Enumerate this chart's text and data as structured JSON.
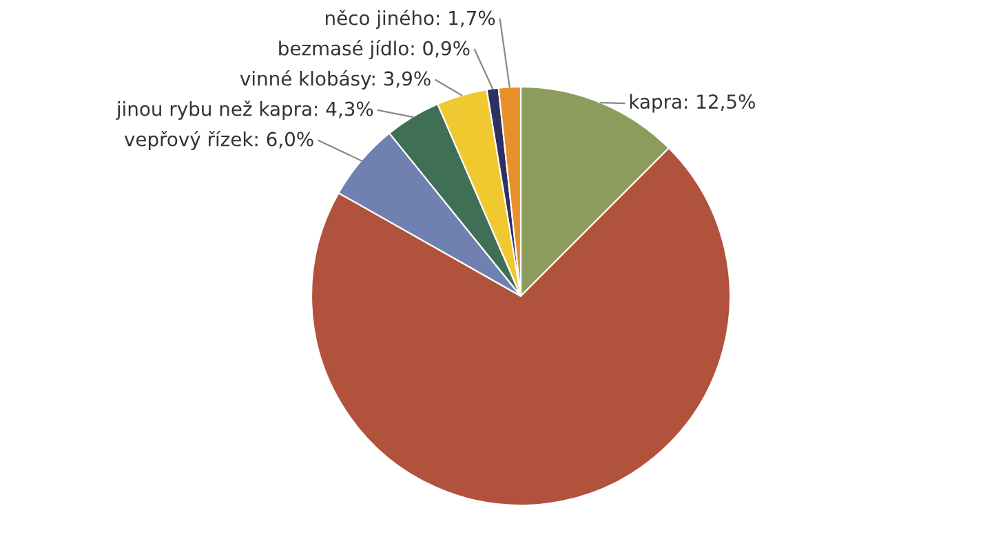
{
  "chart_data": {
    "type": "pie",
    "categories": [
      "kapra",
      null,
      "vepřový řízek",
      "jinou rybu než kapra",
      "vinné klobásy",
      "bezmasé jídlo",
      "něco jiného"
    ],
    "values": [
      12.5,
      70.7,
      6.0,
      4.3,
      3.9,
      0.9,
      1.7
    ],
    "value_labels": [
      "12,5%",
      null,
      "6,0%",
      "4,3%",
      "3,9%",
      "0,9%",
      "1,7%"
    ],
    "colors": [
      "#8c9c5c",
      "#b0523c",
      "#7080b0",
      "#3f6f55",
      "#f0c830",
      "#303060",
      "#e8902a"
    ]
  }
}
